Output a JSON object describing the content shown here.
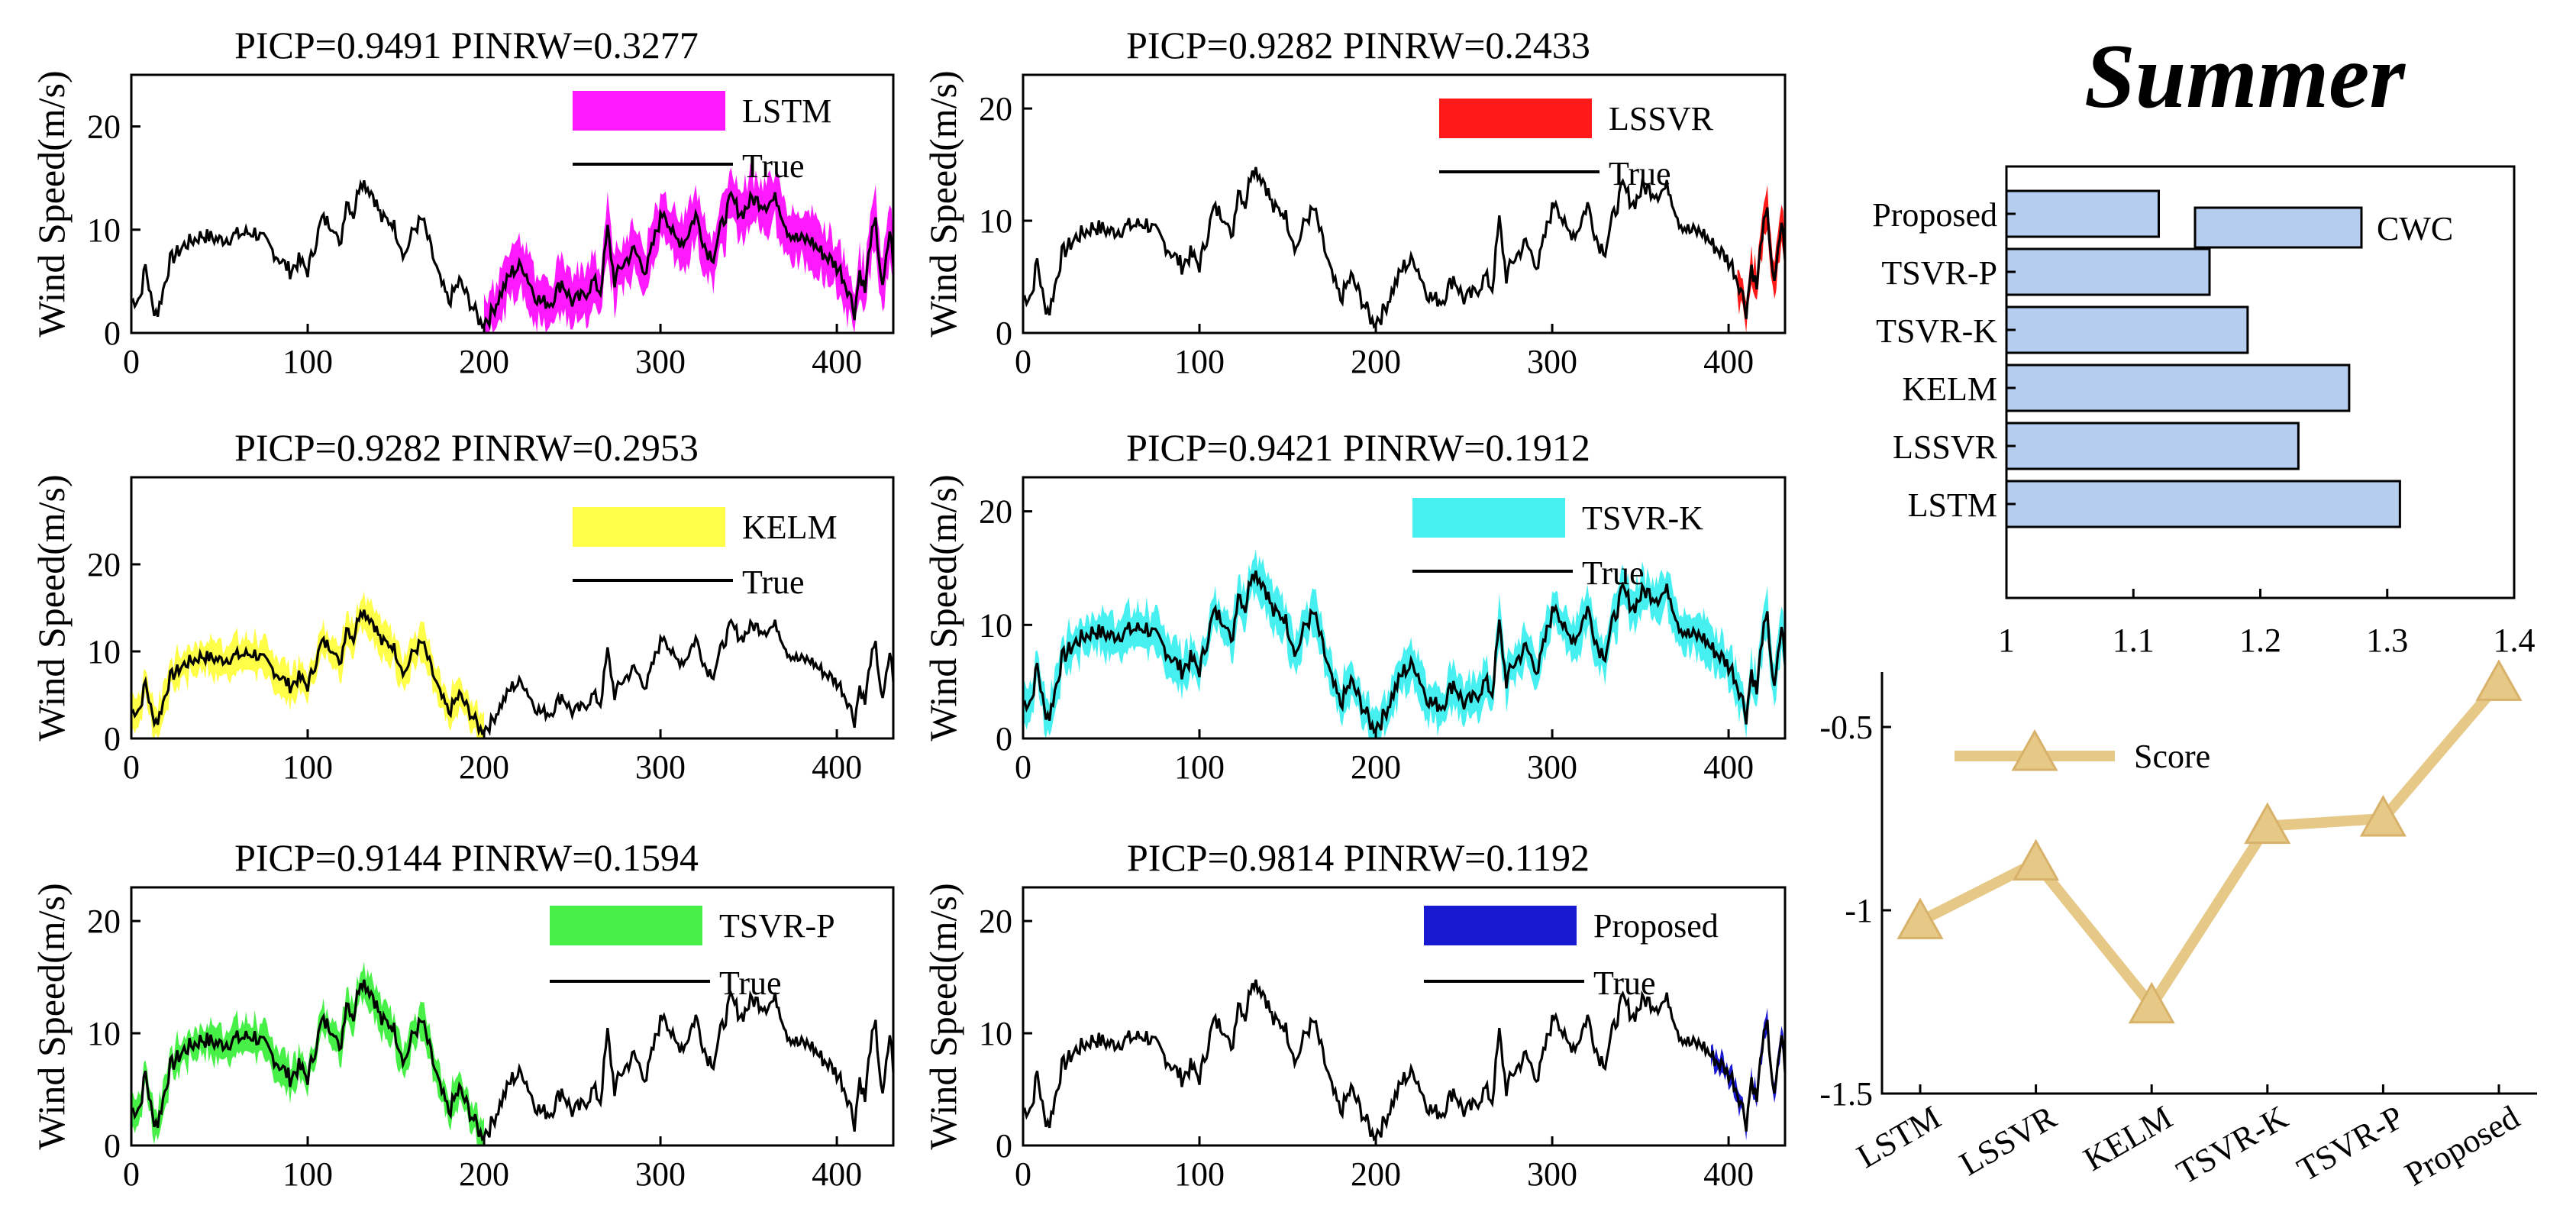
{
  "figure": {
    "season": "Summer"
  },
  "chart_data": [
    {
      "type": "line",
      "title": "PICP=0.9491  PINRW=0.3277",
      "xlabel": "",
      "ylabel": "Wind Speed(m/s)",
      "xlim": [
        0,
        432
      ],
      "ylim": [
        0,
        25
      ],
      "xticks": [
        "0",
        "100",
        "200",
        "300",
        "400"
      ],
      "yticks": [
        "0",
        "10",
        "20"
      ],
      "interval": {
        "name": "LSTM",
        "color": "#ff00ff",
        "start": 200,
        "end": 432,
        "half_width": 2.4
      },
      "series": [
        {
          "name": "True",
          "color": "#000000"
        }
      ]
    },
    {
      "type": "line",
      "title": "PICP=0.9282  PINRW=0.2433",
      "xlabel": "",
      "ylabel": "Wind Speed(m/s)",
      "xlim": [
        0,
        432
      ],
      "ylim": [
        0,
        23
      ],
      "xticks": [
        "0",
        "100",
        "200",
        "300",
        "400"
      ],
      "yticks": [
        "0",
        "10",
        "20"
      ],
      "interval": {
        "name": "LSSVR",
        "color": "#ff0000",
        "start": 405,
        "end": 432,
        "half_width": 1.5
      },
      "series": [
        {
          "name": "True",
          "color": "#000000"
        }
      ]
    },
    {
      "type": "line",
      "title": "PICP=0.9282  PINRW=0.2953",
      "xlabel": "",
      "ylabel": "Wind Speed(m/s)",
      "xlim": [
        0,
        432
      ],
      "ylim": [
        0,
        30
      ],
      "xticks": [
        "0",
        "100",
        "200",
        "300",
        "400"
      ],
      "yticks": [
        "0",
        "10",
        "20"
      ],
      "interval": {
        "name": "KELM",
        "color": "#ffff33",
        "start": 0,
        "end": 200,
        "half_width": 1.9
      },
      "series": [
        {
          "name": "True",
          "color": "#000000"
        }
      ]
    },
    {
      "type": "line",
      "title": "PICP=0.9421  PINRW=0.1912",
      "xlabel": "",
      "ylabel": "Wind Speed(m/s)",
      "xlim": [
        0,
        432
      ],
      "ylim": [
        0,
        23
      ],
      "xticks": [
        "0",
        "100",
        "200",
        "300",
        "400"
      ],
      "yticks": [
        "0",
        "10",
        "20"
      ],
      "interval": {
        "name": "TSVR-K",
        "color": "#33eeee",
        "start": 0,
        "end": 432,
        "half_width": 1.7
      },
      "series": [
        {
          "name": "True",
          "color": "#000000"
        }
      ]
    },
    {
      "type": "line",
      "title": "PICP=0.9144  PINRW=0.1594",
      "xlabel": "",
      "ylabel": "Wind Speed(m/s)",
      "xlim": [
        0,
        432
      ],
      "ylim": [
        0,
        23
      ],
      "xticks": [
        "0",
        "100",
        "200",
        "300",
        "400"
      ],
      "yticks": [
        "0",
        "10",
        "20"
      ],
      "interval": {
        "name": "TSVR-P",
        "color": "#33ee33",
        "start": 0,
        "end": 200,
        "half_width": 1.4
      },
      "series": [
        {
          "name": "True",
          "color": "#000000"
        }
      ]
    },
    {
      "type": "line",
      "title": "PICP=0.9814  PINRW=0.1192",
      "xlabel": "",
      "ylabel": "Wind Speed(m/s)",
      "xlim": [
        0,
        432
      ],
      "ylim": [
        0,
        23
      ],
      "xticks": [
        "0",
        "100",
        "200",
        "300",
        "400"
      ],
      "yticks": [
        "0",
        "10",
        "20"
      ],
      "interval": {
        "name": "Proposed",
        "color": "#0000cc",
        "start": 390,
        "end": 432,
        "half_width": 0.8
      },
      "series": [
        {
          "name": "True",
          "color": "#000000"
        }
      ]
    },
    {
      "type": "bar",
      "orientation": "horizontal",
      "title": "",
      "legend": "CWC",
      "color": "#b5cdee",
      "categories": [
        "Proposed",
        "TSVR-P",
        "TSVR-K",
        "KELM",
        "LSSVR",
        "LSTM"
      ],
      "values": [
        1.12,
        1.16,
        1.19,
        1.27,
        1.23,
        1.31
      ],
      "xlim": [
        1,
        1.4
      ],
      "xticks": [
        "1",
        "1.1",
        "1.2",
        "1.3",
        "1.4"
      ]
    },
    {
      "type": "line",
      "title": "",
      "legend": "Score",
      "color": "#e6c887",
      "categories": [
        "LSTM",
        "LSSVR",
        "KELM",
        "TSVR-K",
        "TSVR-P",
        "Proposed"
      ],
      "values": [
        -1.03,
        -0.87,
        -1.26,
        -0.77,
        -0.75,
        -0.38
      ],
      "ylim": [
        -1.5,
        -0.35
      ],
      "yticks": [
        "-1.5",
        "-1",
        "-0.5"
      ]
    }
  ]
}
